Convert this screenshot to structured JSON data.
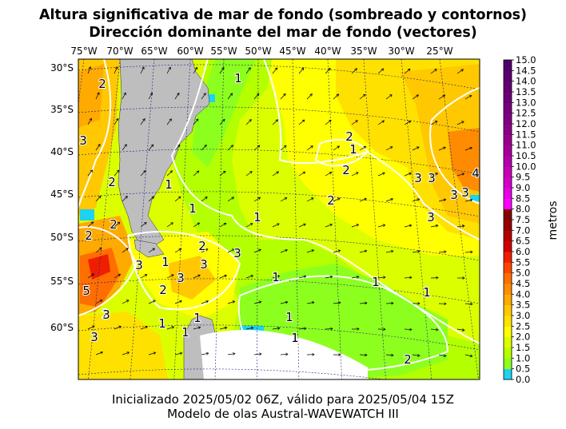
{
  "title_line1": "Altura significativa de mar de fondo (sombreado y contornos)",
  "title_line2": "Dirección dominante del mar de fondo (vectores)",
  "footer_line1": "Inicializado 2025/05/02 06Z, válido para 2025/05/04 15Z",
  "footer_line2": "Modelo de olas Austral-WAVEWATCH III",
  "lon_labels": [
    "75°W",
    "70°W",
    "65°W",
    "60°W",
    "55°W",
    "50°W",
    "45°W",
    "40°W",
    "35°W",
    "30°W",
    "25°W"
  ],
  "lat_labels": [
    "30°S",
    "35°S",
    "40°S",
    "45°S",
    "50°S",
    "55°S",
    "60°S"
  ],
  "colorbar": {
    "label": "metros",
    "ticks": [
      "0.0",
      "0.5",
      "1.0",
      "1.5",
      "2.0",
      "2.5",
      "3.0",
      "3.5",
      "4.0",
      "4.5",
      "5.0",
      "5.5",
      "6.0",
      "6.5",
      "7.0",
      "7.5",
      "8.0",
      "8.5",
      "9.0",
      "9.5",
      "10.0",
      "10.5",
      "11.0",
      "11.5",
      "12.0",
      "12.5",
      "13.0",
      "13.5",
      "14.0",
      "14.5",
      "15.0"
    ],
    "colors": [
      "#1ed2f0",
      "#8cff1e",
      "#b4ff00",
      "#dcff00",
      "#ffff00",
      "#ffe100",
      "#ffc800",
      "#ffaa00",
      "#ff8c00",
      "#ff6e00",
      "#ff4600",
      "#f01e00",
      "#d20000",
      "#b40000",
      "#960000",
      "#820000",
      "#ff00ff",
      "#e600e6",
      "#d200c8",
      "#c800b4",
      "#b400aa",
      "#a50096",
      "#9b008c",
      "#8c0087",
      "#800082",
      "#78007d",
      "#6e0078",
      "#640073",
      "#5a006e",
      "#50006b"
    ]
  },
  "contour_labels": [
    "1",
    "1",
    "1",
    "1",
    "1",
    "1",
    "1",
    "1",
    "1",
    "1",
    "1",
    "1",
    "1",
    "1",
    "2",
    "2",
    "2",
    "2",
    "2",
    "2",
    "2",
    "2",
    "2",
    "2",
    "2",
    "3",
    "3",
    "3",
    "3",
    "3",
    "3",
    "3",
    "3",
    "3",
    "3",
    "3",
    "3",
    "4",
    "5"
  ],
  "colors": {
    "land": "#bebebe",
    "contour": "#ffffff",
    "graticule": "#1a1a80"
  }
}
